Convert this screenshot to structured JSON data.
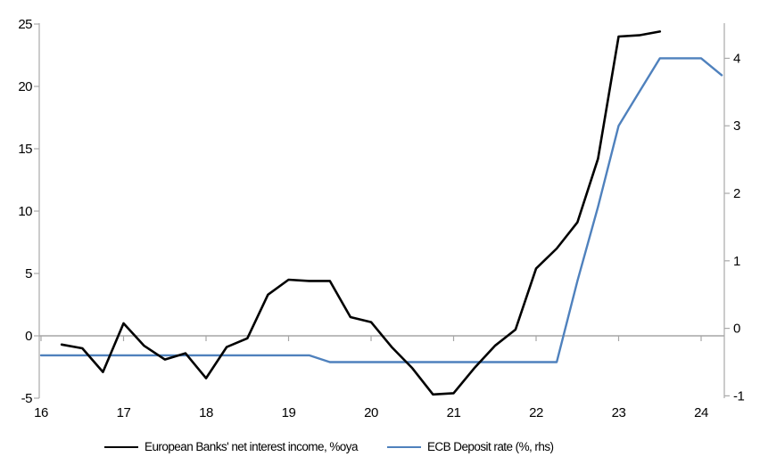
{
  "chart_data": {
    "type": "line",
    "title": "",
    "x_axis": {
      "tick_labels": [
        "16",
        "17",
        "18",
        "19",
        "20",
        "21",
        "22",
        "23",
        "24"
      ],
      "tick_values": [
        16,
        17,
        18,
        19,
        20,
        21,
        22,
        23,
        24
      ],
      "range": [
        16,
        24.28
      ],
      "note": "years, quarterly data; year ticks drawn on the zero line, labels at bottom"
    },
    "left_axis": {
      "tick_labels": [
        "-5",
        "0",
        "5",
        "10",
        "15",
        "20",
        "25"
      ],
      "tick_values": [
        -5,
        0,
        5,
        10,
        15,
        20,
        25
      ],
      "range": [
        -5,
        25
      ]
    },
    "right_axis": {
      "tick_labels": [
        "-1",
        "0",
        "1",
        "2",
        "3",
        "4"
      ],
      "tick_values": [
        -1,
        0,
        1,
        2,
        3,
        4
      ],
      "range": [
        -1,
        4.55
      ]
    },
    "grid": "off",
    "legend_position": "bottom",
    "series": [
      {
        "name": "European Banks' net interest income, %oya",
        "axis": "left",
        "color": "#000000",
        "stroke_width": 2.6,
        "points": [
          [
            16.25,
            -0.7
          ],
          [
            16.5,
            -1.0
          ],
          [
            16.75,
            -2.9
          ],
          [
            17.0,
            1.0
          ],
          [
            17.25,
            -0.8
          ],
          [
            17.5,
            -1.9
          ],
          [
            17.75,
            -1.4
          ],
          [
            18.0,
            -3.4
          ],
          [
            18.25,
            -0.9
          ],
          [
            18.5,
            -0.2
          ],
          [
            18.75,
            3.3
          ],
          [
            19.0,
            4.5
          ],
          [
            19.25,
            4.4
          ],
          [
            19.5,
            4.4
          ],
          [
            19.75,
            1.5
          ],
          [
            20.0,
            1.1
          ],
          [
            20.25,
            -0.9
          ],
          [
            20.5,
            -2.6
          ],
          [
            20.75,
            -4.7
          ],
          [
            21.0,
            -4.6
          ],
          [
            21.25,
            -2.6
          ],
          [
            21.5,
            -0.8
          ],
          [
            21.75,
            0.5
          ],
          [
            22.0,
            5.4
          ],
          [
            22.25,
            7.0
          ],
          [
            22.5,
            9.1
          ],
          [
            22.75,
            14.2
          ],
          [
            23.0,
            24.0
          ],
          [
            23.25,
            24.1
          ],
          [
            23.5,
            24.4
          ]
        ]
      },
      {
        "name": "ECB Deposit rate (%, rhs)",
        "axis": "right",
        "color": "#4f81bd",
        "stroke_width": 2.4,
        "points": [
          [
            16.0,
            -0.4
          ],
          [
            16.25,
            -0.4
          ],
          [
            16.5,
            -0.4
          ],
          [
            16.75,
            -0.4
          ],
          [
            17.0,
            -0.4
          ],
          [
            17.25,
            -0.4
          ],
          [
            17.5,
            -0.4
          ],
          [
            17.75,
            -0.4
          ],
          [
            18.0,
            -0.4
          ],
          [
            18.25,
            -0.4
          ],
          [
            18.5,
            -0.4
          ],
          [
            18.75,
            -0.4
          ],
          [
            19.0,
            -0.4
          ],
          [
            19.25,
            -0.4
          ],
          [
            19.5,
            -0.5
          ],
          [
            19.75,
            -0.5
          ],
          [
            20.0,
            -0.5
          ],
          [
            20.25,
            -0.5
          ],
          [
            20.5,
            -0.5
          ],
          [
            20.75,
            -0.5
          ],
          [
            21.0,
            -0.5
          ],
          [
            21.25,
            -0.5
          ],
          [
            21.5,
            -0.5
          ],
          [
            21.75,
            -0.5
          ],
          [
            22.0,
            -0.5
          ],
          [
            22.25,
            -0.5
          ],
          [
            22.5,
            0.7
          ],
          [
            22.75,
            1.8
          ],
          [
            23.0,
            3.0
          ],
          [
            23.25,
            3.5
          ],
          [
            23.5,
            4.0
          ],
          [
            23.75,
            4.0
          ],
          [
            24.0,
            4.0
          ],
          [
            24.25,
            3.75
          ]
        ]
      }
    ],
    "legend": [
      {
        "label": "European Banks' net interest income, %oya",
        "color": "#000000"
      },
      {
        "label": "ECB Deposit rate (%, rhs)",
        "color": "#4f81bd"
      }
    ],
    "colors": {
      "axis_line": "#a9a9a9",
      "zero_line": "#a6a6a6",
      "series_black": "#000000",
      "series_blue": "#4f81bd",
      "background": "#ffffff",
      "label_text": "#000000"
    }
  }
}
